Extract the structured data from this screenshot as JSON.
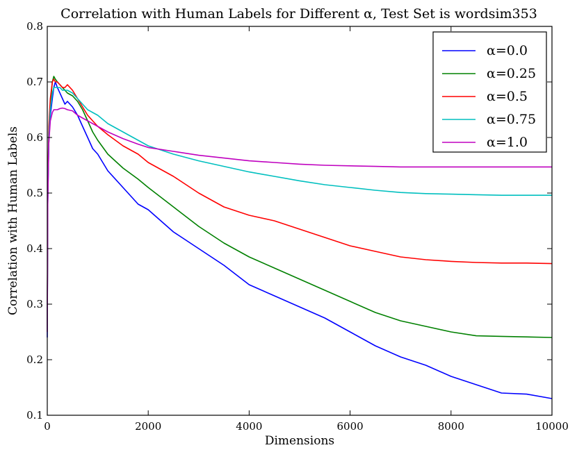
{
  "chart_data": {
    "type": "line",
    "title": "Correlation with Human Labels for Different α, Test Set is wordsim353",
    "xlabel": "Dimensions",
    "ylabel": "Correlation with Human Labels",
    "xlim": [
      0,
      10000
    ],
    "ylim": [
      0.1,
      0.8
    ],
    "xticks": [
      0,
      2000,
      4000,
      6000,
      8000,
      10000
    ],
    "xtick_labels": [
      "0",
      "2000",
      "4000",
      "6000",
      "8000",
      "10000"
    ],
    "yticks": [
      0.1,
      0.2,
      0.3,
      0.4,
      0.5,
      0.6,
      0.7,
      0.8
    ],
    "ytick_labels": [
      "0.1",
      "0.2",
      "0.3",
      "0.4",
      "0.5",
      "0.6",
      "0.7",
      "0.8"
    ],
    "grid": false,
    "legend_position": "top-right",
    "x": [
      0,
      10,
      30,
      60,
      100,
      130,
      160,
      200,
      250,
      300,
      350,
      400,
      500,
      600,
      700,
      800,
      900,
      1000,
      1200,
      1500,
      1800,
      2000,
      2500,
      3000,
      3500,
      4000,
      4500,
      5000,
      5500,
      6000,
      6500,
      7000,
      7500,
      8000,
      8500,
      9000,
      9500,
      10000
    ],
    "series": [
      {
        "name": "α=0.0",
        "color": "#0000ff",
        "values": [
          0.24,
          0.48,
          0.59,
          0.64,
          0.67,
          0.69,
          0.7,
          0.69,
          0.68,
          0.67,
          0.66,
          0.665,
          0.655,
          0.64,
          0.62,
          0.6,
          0.58,
          0.57,
          0.54,
          0.51,
          0.48,
          0.47,
          0.43,
          0.4,
          0.37,
          0.335,
          0.315,
          0.295,
          0.275,
          0.25,
          0.225,
          0.205,
          0.19,
          0.17,
          0.155,
          0.14,
          0.138,
          0.13
        ]
      },
      {
        "name": "α=0.25",
        "color": "#008000",
        "values": [
          0.26,
          0.5,
          0.61,
          0.66,
          0.7,
          0.71,
          0.705,
          0.7,
          0.695,
          0.69,
          0.685,
          0.68,
          0.675,
          0.665,
          0.65,
          0.63,
          0.61,
          0.595,
          0.57,
          0.545,
          0.525,
          0.51,
          0.475,
          0.44,
          0.41,
          0.385,
          0.365,
          0.345,
          0.325,
          0.305,
          0.285,
          0.27,
          0.26,
          0.25,
          0.243,
          0.242,
          0.241,
          0.24
        ]
      },
      {
        "name": "α=0.5",
        "color": "#ff0000",
        "values": [
          0.25,
          0.5,
          0.62,
          0.67,
          0.7,
          0.705,
          0.7,
          0.7,
          0.695,
          0.69,
          0.69,
          0.695,
          0.685,
          0.67,
          0.655,
          0.64,
          0.63,
          0.62,
          0.605,
          0.585,
          0.57,
          0.555,
          0.53,
          0.5,
          0.475,
          0.46,
          0.45,
          0.435,
          0.42,
          0.405,
          0.395,
          0.385,
          0.38,
          0.377,
          0.375,
          0.374,
          0.374,
          0.373
        ]
      },
      {
        "name": "α=0.75",
        "color": "#00bfbf",
        "values": [
          0.25,
          0.49,
          0.6,
          0.65,
          0.68,
          0.69,
          0.69,
          0.69,
          0.69,
          0.685,
          0.685,
          0.685,
          0.68,
          0.67,
          0.66,
          0.65,
          0.645,
          0.64,
          0.625,
          0.61,
          0.595,
          0.585,
          0.57,
          0.558,
          0.548,
          0.538,
          0.53,
          0.522,
          0.515,
          0.51,
          0.505,
          0.501,
          0.499,
          0.498,
          0.497,
          0.496,
          0.496,
          0.496
        ]
      },
      {
        "name": "α=1.0",
        "color": "#bf00bf",
        "values": [
          0.25,
          0.48,
          0.59,
          0.63,
          0.645,
          0.65,
          0.65,
          0.65,
          0.652,
          0.653,
          0.652,
          0.65,
          0.648,
          0.64,
          0.635,
          0.63,
          0.625,
          0.62,
          0.61,
          0.598,
          0.588,
          0.582,
          0.575,
          0.568,
          0.563,
          0.558,
          0.555,
          0.552,
          0.55,
          0.549,
          0.548,
          0.547,
          0.547,
          0.547,
          0.547,
          0.547,
          0.547,
          0.547
        ]
      }
    ]
  }
}
